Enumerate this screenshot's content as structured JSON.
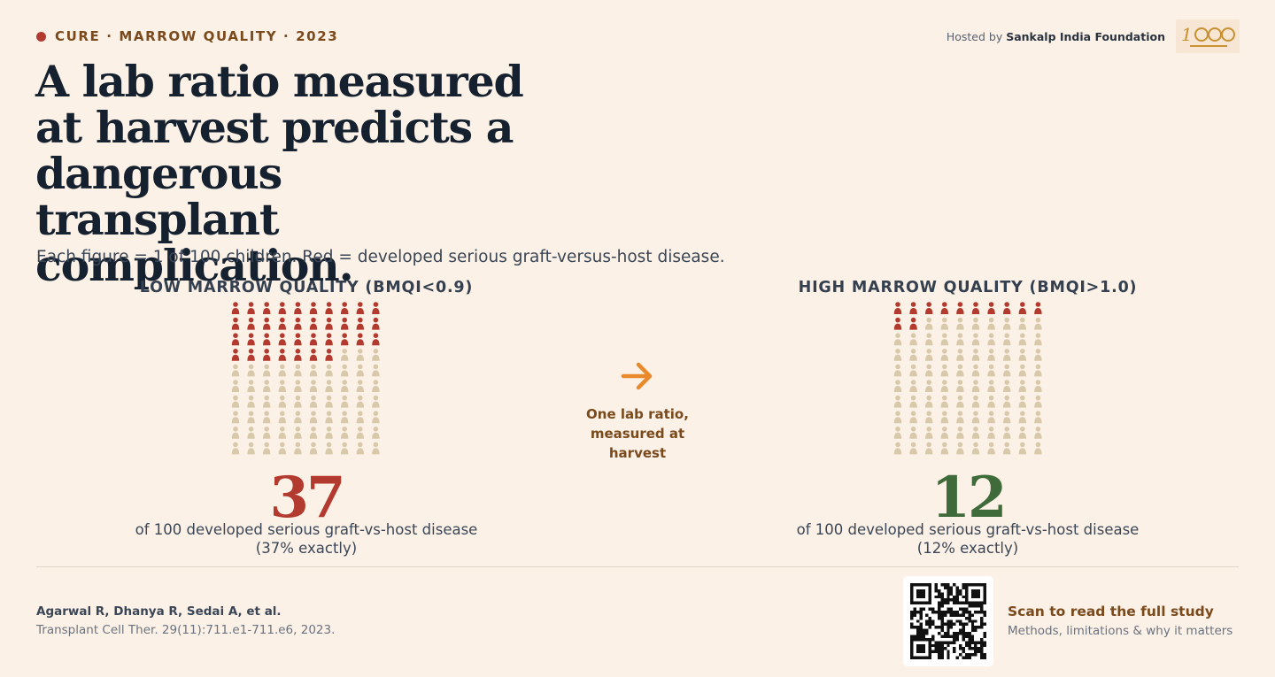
{
  "header": {
    "kicker": "CURE · MARROW QUALITY · 2023",
    "host_prefix": "Hosted by ",
    "host_name": "Sankalp India Foundation",
    "title": "A lab ratio measured at harvest predicts a dangerous transplant complication.",
    "subtitle": "Each figure = 1 of 100 children. Red = developed serious graft-versus-host disease."
  },
  "middle": {
    "text": "One lab ratio, measured at harvest"
  },
  "footer": {
    "authors": "Agarwal R, Dhanya R, Sedai A, et al.",
    "journal": "Transplant Cell Ther. 29(11):711.e1-711.e6, 2023.",
    "scan_title": "Scan to read the full study",
    "scan_sub": "Methods, limitations & why it matters"
  },
  "colors": {
    "affected": "#b23a2e",
    "unaffected": "#d8c9ab",
    "low_number": "#b23a2e",
    "high_number": "#3f6b3a",
    "accent": "#e8892b"
  },
  "chart_data": [
    {
      "type": "waffle",
      "title": "LOW MARROW QUALITY (BMQI<0.9)",
      "total": 100,
      "affected": 37,
      "number_label": "37",
      "description": "of 100 developed serious graft-vs-host disease",
      "note": "(37% exactly)"
    },
    {
      "type": "waffle",
      "title": "HIGH MARROW QUALITY (BMQI>1.0)",
      "total": 100,
      "affected": 12,
      "number_label": "12",
      "description": "of 100 developed serious graft-vs-host disease",
      "note": "(12% exactly)"
    }
  ]
}
